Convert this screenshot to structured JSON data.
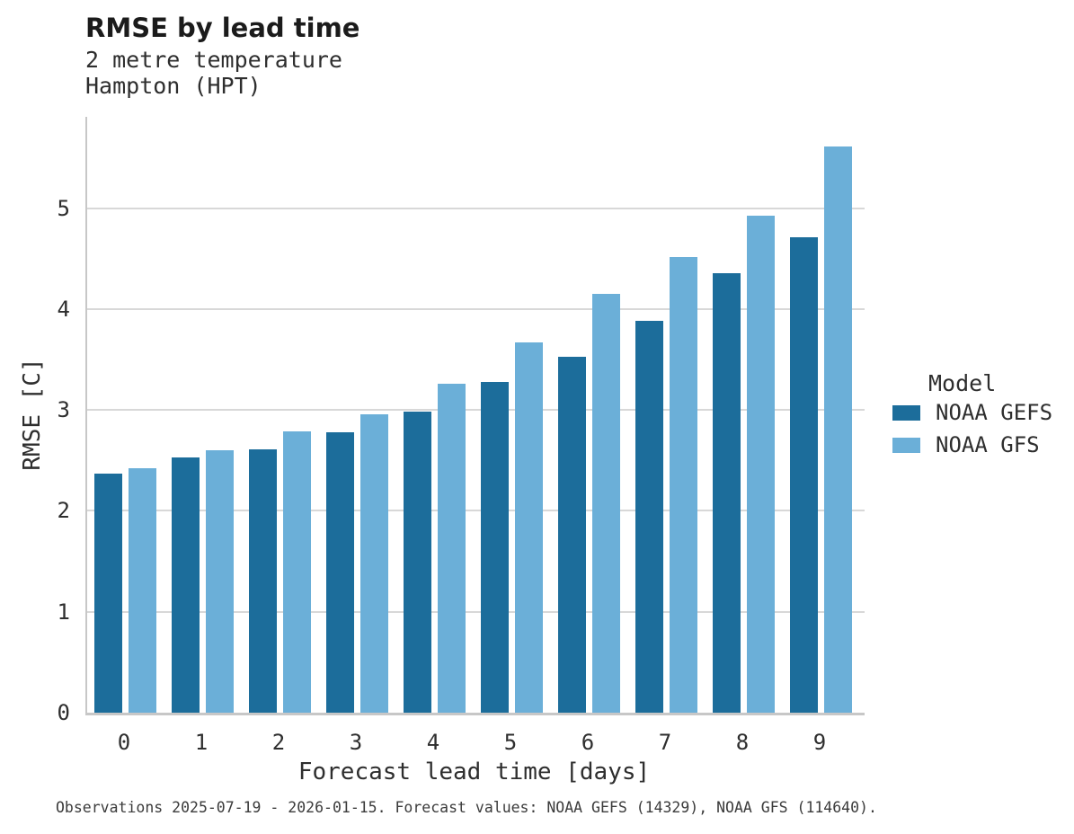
{
  "header": {
    "title": "RMSE by lead time",
    "subtitle_line1": "2 metre temperature",
    "subtitle_line2": "Hampton (HPT)"
  },
  "legend": {
    "title": "Model"
  },
  "footer": {
    "caption": "Observations 2025-07-19 - 2026-01-15. Forecast values: NOAA GEFS (14329), NOAA GFS (114640)."
  },
  "colors": {
    "noaa_gefs": "#1c6d9b",
    "noaa_gfs": "#6bafd8",
    "gridline": "#d8d8d8",
    "spine": "#c7c7c7",
    "text": "#2e2e2e"
  },
  "chart_data": {
    "type": "bar",
    "title": "RMSE by lead time",
    "subtitle": [
      "2 metre temperature",
      "Hampton (HPT)"
    ],
    "categories": [
      "0",
      "1",
      "2",
      "3",
      "4",
      "5",
      "6",
      "7",
      "8",
      "9"
    ],
    "series": [
      {
        "name": "NOAA GEFS",
        "color": "#1c6d9b",
        "values": [
          2.37,
          2.53,
          2.61,
          2.78,
          2.98,
          3.28,
          3.53,
          3.88,
          4.36,
          4.71
        ]
      },
      {
        "name": "NOAA GFS",
        "color": "#6bafd8",
        "values": [
          2.42,
          2.6,
          2.79,
          2.96,
          3.26,
          3.67,
          4.15,
          4.52,
          4.93,
          5.61
        ]
      }
    ],
    "xlabel": "Forecast lead time [days]",
    "ylabel": "RMSE [C]",
    "ylim": [
      0,
      5.9
    ],
    "yticks": [
      0,
      1,
      2,
      3,
      4,
      5
    ],
    "grid": true,
    "legend_title": "Model",
    "legend_position": "right"
  }
}
